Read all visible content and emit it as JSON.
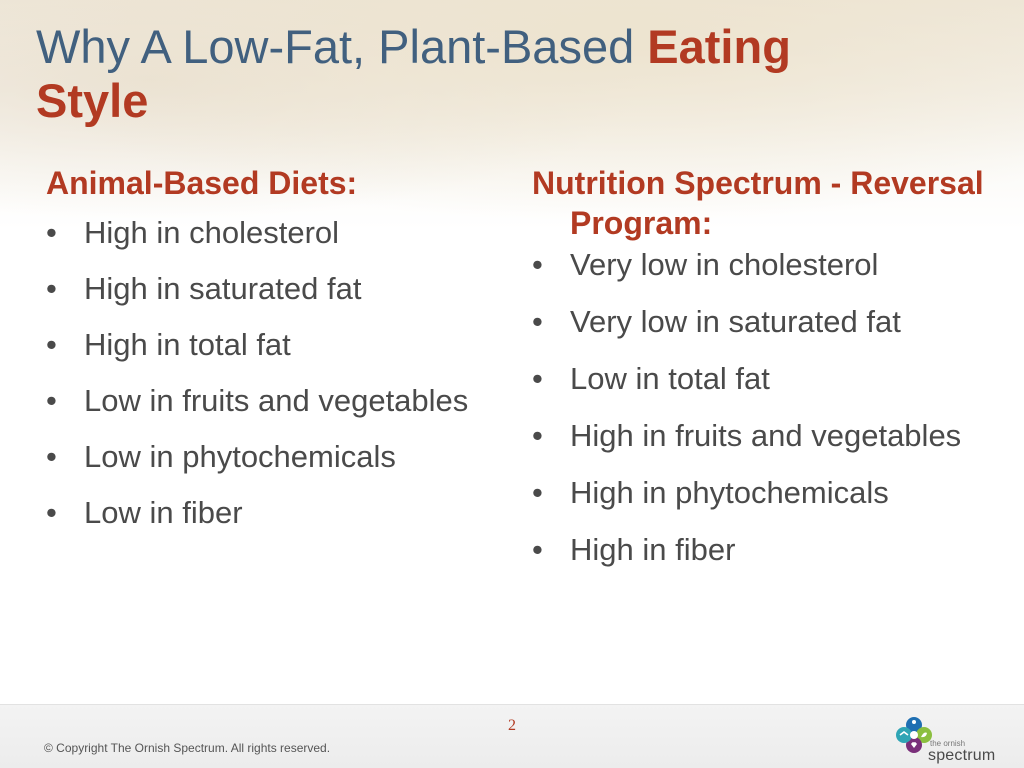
{
  "title": {
    "main": "Why A Low-Fat, Plant-Based ",
    "accent_line1": "Eating",
    "accent_line2": "Style"
  },
  "left_column": {
    "heading": "Animal-Based Diets:",
    "items": [
      "High in cholesterol",
      "High in saturated fat",
      "High in total fat",
      "Low in fruits and vegetables",
      "Low in phytochemicals",
      "Low in fiber"
    ]
  },
  "right_column": {
    "heading": "Nutrition Spectrum - Reversal Program:",
    "items": [
      "Very low in cholesterol",
      "Very low in saturated fat",
      "Low in total fat",
      "High in fruits and vegetables",
      "High in phytochemicals",
      "High in fiber"
    ]
  },
  "bullet_char": "•",
  "footer": {
    "page_number": "2",
    "copyright": "© Copyright The Ornish Spectrum. All rights reserved.",
    "logo_small_text": "the ornish",
    "logo_word": "spectrum",
    "logo_icon": "ornish-spectrum-logo-icon"
  },
  "colors": {
    "title": "#41607f",
    "accent": "#b23a22",
    "body_text": "#4a4a4a",
    "logo_blue": "#1f6fb2",
    "logo_green": "#8bbf3f",
    "logo_purple": "#7a2f7a",
    "logo_teal": "#2fa5b5"
  }
}
